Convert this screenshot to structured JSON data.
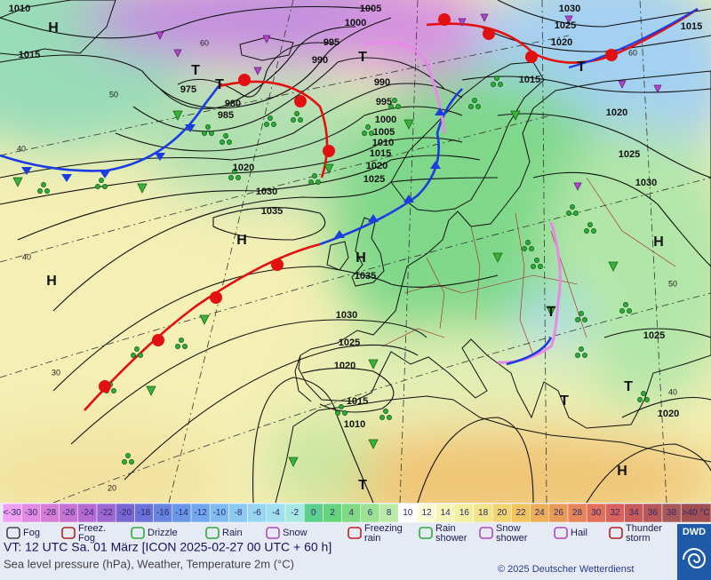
{
  "map": {
    "pressure_labels": [
      "1010",
      "1015",
      "1005",
      "1000",
      "995",
      "990",
      "975",
      "980",
      "985",
      "990",
      "995",
      "1000",
      "1005",
      "1010",
      "1015",
      "1020",
      "1025",
      "1020",
      "1030",
      "1035",
      "1035",
      "1030",
      "1025",
      "1020",
      "1015",
      "1010",
      "1030",
      "1025",
      "1020",
      "1015",
      "1020",
      "1025",
      "1030",
      "1025",
      "1020",
      "1015"
    ],
    "pressure_centers": [
      "H",
      "T",
      "T",
      "T",
      "T",
      "H",
      "H",
      "H",
      "H",
      "T",
      "T",
      "T",
      "H",
      "T"
    ],
    "latitude_labels": [
      "60",
      "50",
      "40",
      "40",
      "30",
      "20",
      "60",
      "50",
      "40"
    ]
  },
  "legend": {
    "below_label": "<-30",
    "temperature_scale": [
      -30,
      -28,
      -26,
      -24,
      -22,
      -20,
      -18,
      -16,
      -14,
      -12,
      -10,
      -8,
      -6,
      -4,
      -2,
      0,
      2,
      4,
      6,
      8,
      10,
      12,
      14,
      16,
      18,
      20,
      22,
      24,
      26,
      28,
      30,
      32,
      34,
      36,
      38
    ],
    "scale_colors": [
      "#e48ae4",
      "#d67ed8",
      "#c874d4",
      "#b46ad0",
      "#9e66d0",
      "#7a66d0",
      "#6a72d8",
      "#6684e0",
      "#6a96e8",
      "#72a8ee",
      "#80bcf2",
      "#8ccaf2",
      "#96d6f0",
      "#a0e0ee",
      "#a6e8e2",
      "#5ccf8c",
      "#66d47c",
      "#80da84",
      "#9ce294",
      "#bceaa8",
      "#ffffff",
      "#fbfbd6",
      "#f6f6b8",
      "#f2f0a0",
      "#f2e488",
      "#f2d470",
      "#f2c460",
      "#eeae58",
      "#ea9a58",
      "#e6845a",
      "#e2705a",
      "#d8625c",
      "#c85a5a",
      "#b85858",
      "#a85858"
    ],
    "below_color": "#f0a0f0",
    "above_color": "#a05050",
    "above_label": ">40 °C",
    "symbols": [
      {
        "lines": [
          "Fog"
        ]
      },
      {
        "lines": [
          "Freez.",
          "Fog"
        ]
      },
      {
        "lines": [
          "Drizzle"
        ]
      },
      {
        "lines": [
          "Rain"
        ]
      },
      {
        "lines": [
          "Snow"
        ]
      },
      {
        "lines": [
          "Freezing",
          "rain"
        ]
      },
      {
        "lines": [
          "Rain",
          "shower"
        ]
      },
      {
        "lines": [
          "Snow",
          "shower"
        ]
      },
      {
        "lines": [
          "Hail"
        ]
      },
      {
        "lines": [
          "Thunder",
          "storm"
        ]
      }
    ]
  },
  "footer": {
    "valid_time": "VT: 12 UTC Sa.  01 März [ICON 2025-02-27  00 UTC + 60 h]",
    "description": "Sea level pressure (hPa), Weather, Temperature 2m (°C)",
    "copyright": "© 2025 Deutscher Wetterdienst",
    "logo": "DWD"
  }
}
